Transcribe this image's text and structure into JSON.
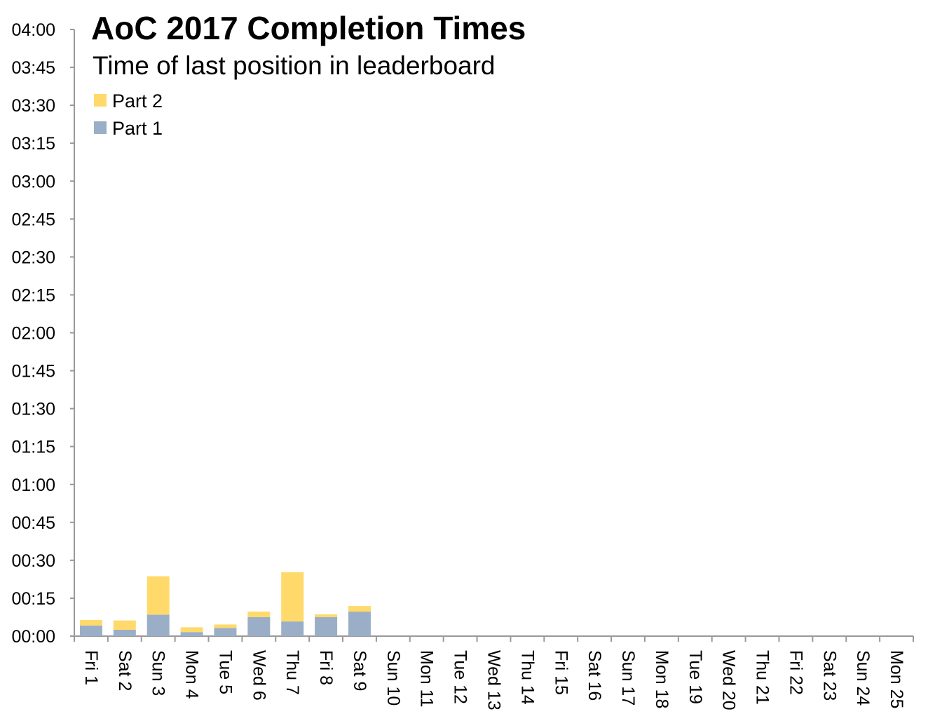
{
  "colors": {
    "part1": "#9AAFC7",
    "part2": "#FFDA6B",
    "axis": "#999999"
  },
  "chart_data": {
    "type": "bar",
    "stacked": true,
    "title": "AoC 2017 Completion Times",
    "subtitle": "Time of last position in leaderboard",
    "xlabel": "",
    "ylabel": "",
    "ylim": [
      0,
      240
    ],
    "y_unit": "minutes",
    "yticks": [
      0,
      15,
      30,
      45,
      60,
      75,
      90,
      105,
      120,
      135,
      150,
      165,
      180,
      195,
      210,
      225,
      240
    ],
    "ytick_labels": [
      "00:00",
      "00:15",
      "00:30",
      "00:45",
      "01:00",
      "01:15",
      "01:30",
      "01:45",
      "02:00",
      "02:15",
      "02:30",
      "02:45",
      "03:00",
      "03:15",
      "03:30",
      "03:45",
      "04:00"
    ],
    "categories": [
      "Fri 1",
      "Sat 2",
      "Sun 3",
      "Mon 4",
      "Tue 5",
      "Wed 6",
      "Thu 7",
      "Fri 8",
      "Sat 9",
      "Sun 10",
      "Mon 11",
      "Tue 12",
      "Wed 13",
      "Thu 14",
      "Fri 15",
      "Sat 16",
      "Sun 17",
      "Mon 18",
      "Tue 19",
      "Wed 20",
      "Thu 21",
      "Fri 22",
      "Sat 23",
      "Sun 24",
      "Mon 25"
    ],
    "series": [
      {
        "name": "Part 1",
        "color_key": "part1",
        "values": [
          4.2,
          2.5,
          8.5,
          1.6,
          3.2,
          7.5,
          5.8,
          7.5,
          9.7,
          null,
          null,
          null,
          null,
          null,
          null,
          null,
          null,
          null,
          null,
          null,
          null,
          null,
          null,
          null,
          null
        ]
      },
      {
        "name": "Part 2",
        "color_key": "part2",
        "values": [
          2.2,
          3.7,
          15.2,
          1.9,
          1.4,
          2.2,
          19.5,
          1.1,
          2.2,
          null,
          null,
          null,
          null,
          null,
          null,
          null,
          null,
          null,
          null,
          null,
          null,
          null,
          null,
          null,
          null
        ]
      }
    ],
    "legend": {
      "placement": "top-left",
      "entries": [
        "Part 2",
        "Part 1"
      ]
    },
    "grid": false
  }
}
